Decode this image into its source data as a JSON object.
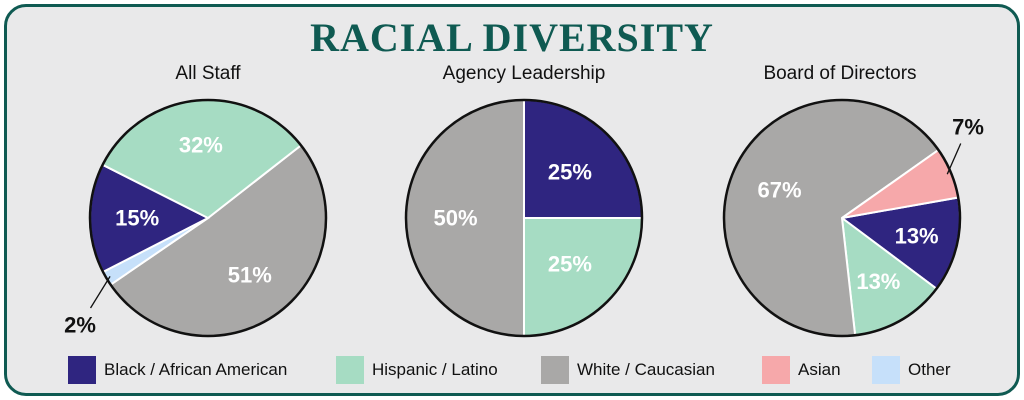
{
  "title": "RACIAL DIVERSITY",
  "colors": {
    "Black / African American": "#2f2580",
    "Hispanic / Latino": "#a6dcc3",
    "White / Caucasian": "#a9a8a7",
    "Asian": "#f6a8aa",
    "Other": "#c6e0fa"
  },
  "legend": [
    {
      "label": "Black / African American",
      "color": "#2f2580"
    },
    {
      "label": "Hispanic / Latino",
      "color": "#a6dcc3"
    },
    {
      "label": "White / Caucasian",
      "color": "#a9a8a7"
    },
    {
      "label": "Asian",
      "color": "#f6a8aa"
    },
    {
      "label": "Other",
      "color": "#c6e0fa"
    }
  ],
  "chart_data": [
    {
      "type": "pie",
      "title": "All Staff",
      "slices": [
        {
          "category": "White / Caucasian",
          "value": 51,
          "label": "51%"
        },
        {
          "category": "Other",
          "value": 2,
          "label": "2%"
        },
        {
          "category": "Black / African American",
          "value": 15,
          "label": "15%"
        },
        {
          "category": "Hispanic / Latino",
          "value": 32,
          "label": "32%"
        }
      ]
    },
    {
      "type": "pie",
      "title": "Agency Leadership",
      "slices": [
        {
          "category": "Black / African American",
          "value": 25,
          "label": "25%"
        },
        {
          "category": "Hispanic / Latino",
          "value": 25,
          "label": "25%"
        },
        {
          "category": "White / Caucasian",
          "value": 50,
          "label": "50%"
        }
      ]
    },
    {
      "type": "pie",
      "title": "Board of Directors",
      "slices": [
        {
          "category": "Black / African American",
          "value": 13,
          "label": "13%"
        },
        {
          "category": "Hispanic / Latino",
          "value": 13,
          "label": "13%"
        },
        {
          "category": "White / Caucasian",
          "value": 67,
          "label": "67%"
        },
        {
          "category": "Asian",
          "value": 7,
          "label": "7%"
        }
      ]
    }
  ]
}
